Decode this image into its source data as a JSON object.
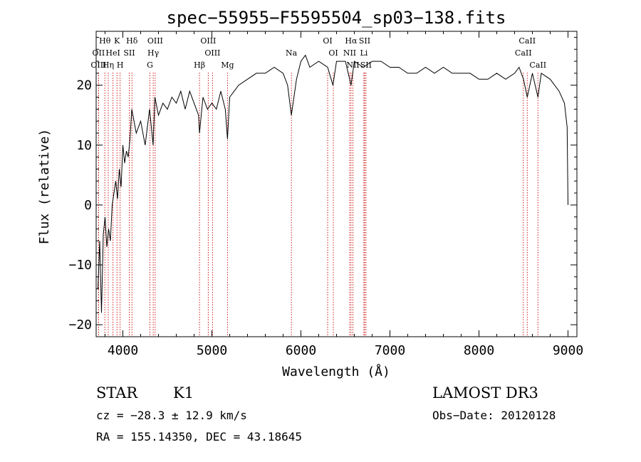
{
  "chart_data": {
    "type": "line",
    "title": "spec−55955−F5595504_sp03−138.fits",
    "xlabel": "Wavelength (Å)",
    "ylabel": "Flux (relative)",
    "xlim": [
      3700,
      9100
    ],
    "ylim": [
      -22,
      29
    ],
    "x_ticks": [
      4000,
      5000,
      6000,
      7000,
      8000,
      9000
    ],
    "y_ticks": [
      -20,
      -10,
      0,
      10,
      20
    ],
    "y_tick_labels": [
      "−20",
      "−10",
      "0",
      "10",
      "20"
    ],
    "series": [
      {
        "name": "spectrum",
        "x": [
          3720,
          3740,
          3760,
          3780,
          3800,
          3820,
          3840,
          3860,
          3880,
          3900,
          3920,
          3940,
          3960,
          3980,
          4000,
          4020,
          4040,
          4060,
          4080,
          4100,
          4150,
          4200,
          4250,
          4300,
          4340,
          4360,
          4400,
          4450,
          4500,
          4550,
          4600,
          4650,
          4700,
          4750,
          4800,
          4850,
          4861,
          4900,
          4950,
          5000,
          5050,
          5100,
          5150,
          5175,
          5200,
          5250,
          5300,
          5400,
          5500,
          5600,
          5700,
          5800,
          5850,
          5893,
          5950,
          6000,
          6050,
          6100,
          6200,
          6300,
          6360,
          6400,
          6500,
          6563,
          6600,
          6700,
          6800,
          6900,
          7000,
          7100,
          7200,
          7300,
          7400,
          7500,
          7600,
          7700,
          7800,
          7900,
          8000,
          8100,
          8200,
          8300,
          8400,
          8450,
          8500,
          8542,
          8600,
          8662,
          8700,
          8800,
          8900,
          8960,
          8990,
          9000
        ],
        "y": [
          -14,
          -6,
          -18,
          -5,
          -2,
          -7,
          -4,
          -6,
          0,
          2,
          4,
          1,
          6,
          3,
          10,
          7,
          9,
          8,
          11,
          16,
          12,
          14,
          10,
          16,
          10,
          18,
          15,
          17,
          16,
          18,
          17,
          19,
          16,
          19,
          17,
          15,
          12,
          18,
          16,
          17,
          16,
          19,
          16,
          11,
          18,
          19,
          20,
          21,
          22,
          22,
          23,
          22,
          20,
          15,
          21,
          24,
          25,
          23,
          24,
          23,
          20,
          24,
          24,
          20,
          24,
          23,
          24,
          24,
          23,
          23,
          22,
          22,
          23,
          22,
          23,
          22,
          22,
          22,
          21,
          21,
          22,
          21,
          22,
          23,
          21,
          18,
          22,
          18,
          22,
          21,
          19,
          17,
          13,
          0
        ]
      }
    ],
    "line_markers": [
      {
        "label": "Hθ",
        "x": 3798,
        "row": 0
      },
      {
        "label": "OII",
        "x": 3727,
        "row": 1
      },
      {
        "label": "OIII",
        "x": 3727,
        "row": 2
      },
      {
        "label": "Hη",
        "x": 3836,
        "row": 2
      },
      {
        "label": "K",
        "x": 3934,
        "row": 0
      },
      {
        "label": "HeI",
        "x": 3889,
        "row": 1
      },
      {
        "label": "H",
        "x": 3969,
        "row": 2
      },
      {
        "label": "SII",
        "x": 4072,
        "row": 1
      },
      {
        "label": "Hδ",
        "x": 4102,
        "row": 0
      },
      {
        "label": "OIII",
        "x": 4363,
        "row": 0
      },
      {
        "label": "Hγ",
        "x": 4341,
        "row": 1
      },
      {
        "label": "G",
        "x": 4304,
        "row": 2
      },
      {
        "label": "OIII",
        "x": 4959,
        "row": 0
      },
      {
        "label": "OIII",
        "x": 5007,
        "row": 1
      },
      {
        "label": "Hβ",
        "x": 4861,
        "row": 2
      },
      {
        "label": "Mg",
        "x": 5175,
        "row": 2
      },
      {
        "label": "Na",
        "x": 5893,
        "row": 1
      },
      {
        "label": "OI",
        "x": 6300,
        "row": 0
      },
      {
        "label": "OI",
        "x": 6364,
        "row": 1
      },
      {
        "label": "Hα",
        "x": 6563,
        "row": 0
      },
      {
        "label": "SII",
        "x": 6716,
        "row": 0
      },
      {
        "label": "NII",
        "x": 6548,
        "row": 1
      },
      {
        "label": "Li",
        "x": 6707,
        "row": 1
      },
      {
        "label": "NII",
        "x": 6584,
        "row": 2
      },
      {
        "label": "SII",
        "x": 6731,
        "row": 2
      },
      {
        "label": "CaII",
        "x": 8542,
        "row": 0
      },
      {
        "label": "CaII",
        "x": 8498,
        "row": 1
      },
      {
        "label": "CaII",
        "x": 8662,
        "row": 2
      }
    ]
  },
  "info": {
    "object_class": "STAR",
    "subclass": "K1",
    "survey": "LAMOST DR3",
    "redshift": "cz = −28.3 ± 12.9 km/s",
    "obs_date": "Obs−Date: 20120128",
    "coords": "RA = 155.14350, DEC =  43.18645"
  }
}
